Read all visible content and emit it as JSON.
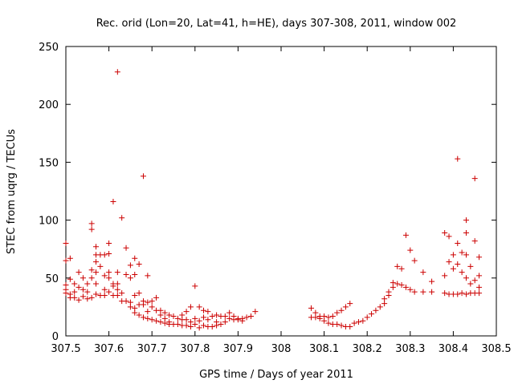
{
  "chart_data": {
    "type": "scatter",
    "title": "Rec. orid (Lon=20, Lat=41, h=HE), days 307-308, 2011, window 002",
    "xlabel": "GPS time / Days of year 2011",
    "ylabel": "STEC from uqrg / TECUs",
    "xlim": [
      307.5,
      308.5
    ],
    "ylim": [
      0,
      250
    ],
    "xticks": [
      307.5,
      307.6,
      307.7,
      307.8,
      307.9,
      308.0,
      308.1,
      308.2,
      308.3,
      308.4,
      308.5
    ],
    "xtick_labels": [
      "307.5",
      "307.6",
      "307.7",
      "307.8",
      "307.9",
      "308",
      "308.1",
      "308.2",
      "308.3",
      "308.4",
      "308.5"
    ],
    "yticks": [
      0,
      50,
      100,
      150,
      200,
      250
    ],
    "ytick_labels": [
      "0",
      "50",
      "100",
      "150",
      "200",
      "250"
    ],
    "grid": false,
    "marker": "+",
    "color": "#cc0000",
    "series": [
      {
        "name": "STEC",
        "points": [
          [
            307.5,
            80
          ],
          [
            307.5,
            65
          ],
          [
            307.5,
            44
          ],
          [
            307.5,
            40
          ],
          [
            307.5,
            37
          ],
          [
            307.51,
            67
          ],
          [
            307.51,
            49
          ],
          [
            307.51,
            36
          ],
          [
            307.51,
            33
          ],
          [
            307.52,
            45
          ],
          [
            307.52,
            38
          ],
          [
            307.52,
            33
          ],
          [
            307.53,
            55
          ],
          [
            307.53,
            42
          ],
          [
            307.53,
            31
          ],
          [
            307.54,
            50
          ],
          [
            307.54,
            40
          ],
          [
            307.54,
            34
          ],
          [
            307.55,
            45
          ],
          [
            307.55,
            38
          ],
          [
            307.55,
            32
          ],
          [
            307.56,
            97
          ],
          [
            307.56,
            92
          ],
          [
            307.56,
            57
          ],
          [
            307.56,
            50
          ],
          [
            307.56,
            33
          ],
          [
            307.57,
            77
          ],
          [
            307.57,
            70
          ],
          [
            307.57,
            64
          ],
          [
            307.57,
            55
          ],
          [
            307.57,
            45
          ],
          [
            307.57,
            36
          ],
          [
            307.58,
            70
          ],
          [
            307.58,
            60
          ],
          [
            307.58,
            35
          ],
          [
            307.59,
            70
          ],
          [
            307.59,
            52
          ],
          [
            307.59,
            40
          ],
          [
            307.59,
            35
          ],
          [
            307.6,
            80
          ],
          [
            307.6,
            71
          ],
          [
            307.6,
            55
          ],
          [
            307.6,
            50
          ],
          [
            307.6,
            38
          ],
          [
            307.61,
            116
          ],
          [
            307.61,
            45
          ],
          [
            307.61,
            43
          ],
          [
            307.61,
            35
          ],
          [
            307.62,
            228
          ],
          [
            307.62,
            55
          ],
          [
            307.62,
            45
          ],
          [
            307.62,
            40
          ],
          [
            307.62,
            35
          ],
          [
            307.63,
            102
          ],
          [
            307.63,
            37
          ],
          [
            307.63,
            30
          ],
          [
            307.64,
            76
          ],
          [
            307.64,
            53
          ],
          [
            307.64,
            30
          ],
          [
            307.65,
            61
          ],
          [
            307.65,
            50
          ],
          [
            307.65,
            29
          ],
          [
            307.65,
            25
          ],
          [
            307.66,
            67
          ],
          [
            307.66,
            53
          ],
          [
            307.66,
            35
          ],
          [
            307.66,
            24
          ],
          [
            307.66,
            20
          ],
          [
            307.67,
            62
          ],
          [
            307.67,
            37
          ],
          [
            307.67,
            27
          ],
          [
            307.67,
            18
          ],
          [
            307.68,
            138
          ],
          [
            307.68,
            30
          ],
          [
            307.68,
            27
          ],
          [
            307.68,
            16
          ],
          [
            307.69,
            52
          ],
          [
            307.69,
            29
          ],
          [
            307.69,
            21
          ],
          [
            307.69,
            15
          ],
          [
            307.7,
            30
          ],
          [
            307.7,
            25
          ],
          [
            307.7,
            14
          ],
          [
            307.71,
            33
          ],
          [
            307.71,
            22
          ],
          [
            307.71,
            13
          ],
          [
            307.72,
            22
          ],
          [
            307.72,
            18
          ],
          [
            307.72,
            12
          ],
          [
            307.73,
            20
          ],
          [
            307.73,
            15
          ],
          [
            307.73,
            11
          ],
          [
            307.74,
            18
          ],
          [
            307.74,
            12
          ],
          [
            307.74,
            10
          ],
          [
            307.75,
            17
          ],
          [
            307.75,
            10
          ],
          [
            307.76,
            15
          ],
          [
            307.76,
            10
          ],
          [
            307.77,
            18
          ],
          [
            307.77,
            14
          ],
          [
            307.77,
            9
          ],
          [
            307.78,
            21
          ],
          [
            307.78,
            14
          ],
          [
            307.78,
            9
          ],
          [
            307.79,
            25
          ],
          [
            307.79,
            12
          ],
          [
            307.79,
            8
          ],
          [
            307.8,
            43
          ],
          [
            307.8,
            15
          ],
          [
            307.8,
            10
          ],
          [
            307.81,
            25
          ],
          [
            307.81,
            13
          ],
          [
            307.81,
            7
          ],
          [
            307.82,
            22
          ],
          [
            307.82,
            16
          ],
          [
            307.82,
            9
          ],
          [
            307.83,
            21
          ],
          [
            307.83,
            14
          ],
          [
            307.83,
            8
          ],
          [
            307.84,
            17
          ],
          [
            307.84,
            8
          ],
          [
            307.85,
            18
          ],
          [
            307.85,
            12
          ],
          [
            307.85,
            9
          ],
          [
            307.86,
            17
          ],
          [
            307.86,
            10
          ],
          [
            307.87,
            17
          ],
          [
            307.87,
            12
          ],
          [
            307.88,
            20
          ],
          [
            307.88,
            15
          ],
          [
            307.89,
            17
          ],
          [
            307.89,
            14
          ],
          [
            307.9,
            15
          ],
          [
            307.9,
            14
          ],
          [
            307.91,
            15
          ],
          [
            307.91,
            13
          ],
          [
            307.92,
            16
          ],
          [
            307.93,
            17
          ],
          [
            307.94,
            21
          ],
          [
            308.07,
            24
          ],
          [
            308.07,
            16
          ],
          [
            308.08,
            20
          ],
          [
            308.08,
            16
          ],
          [
            308.09,
            17
          ],
          [
            308.09,
            15
          ],
          [
            308.1,
            17
          ],
          [
            308.1,
            13
          ],
          [
            308.11,
            16
          ],
          [
            308.11,
            11
          ],
          [
            308.12,
            17
          ],
          [
            308.12,
            10
          ],
          [
            308.13,
            20
          ],
          [
            308.13,
            10
          ],
          [
            308.14,
            22
          ],
          [
            308.14,
            9
          ],
          [
            308.15,
            25
          ],
          [
            308.15,
            8
          ],
          [
            308.16,
            28
          ],
          [
            308.16,
            8
          ],
          [
            308.17,
            11
          ],
          [
            308.18,
            12
          ],
          [
            308.19,
            13
          ],
          [
            308.2,
            16
          ],
          [
            308.21,
            19
          ],
          [
            308.22,
            22
          ],
          [
            308.23,
            25
          ],
          [
            308.24,
            28
          ],
          [
            308.24,
            32
          ],
          [
            308.25,
            35
          ],
          [
            308.25,
            38
          ],
          [
            308.26,
            42
          ],
          [
            308.26,
            46
          ],
          [
            308.27,
            60
          ],
          [
            308.27,
            45
          ],
          [
            308.28,
            58
          ],
          [
            308.28,
            44
          ],
          [
            308.29,
            87
          ],
          [
            308.29,
            42
          ],
          [
            308.3,
            74
          ],
          [
            308.3,
            40
          ],
          [
            308.31,
            65
          ],
          [
            308.31,
            38
          ],
          [
            308.33,
            55
          ],
          [
            308.33,
            38
          ],
          [
            308.35,
            47
          ],
          [
            308.35,
            38
          ],
          [
            308.38,
            89
          ],
          [
            308.38,
            52
          ],
          [
            308.38,
            37
          ],
          [
            308.39,
            86
          ],
          [
            308.39,
            64
          ],
          [
            308.39,
            36
          ],
          [
            308.4,
            70
          ],
          [
            308.4,
            58
          ],
          [
            308.4,
            36
          ],
          [
            308.41,
            153
          ],
          [
            308.41,
            80
          ],
          [
            308.41,
            62
          ],
          [
            308.41,
            36
          ],
          [
            308.42,
            72
          ],
          [
            308.42,
            55
          ],
          [
            308.42,
            37
          ],
          [
            308.43,
            100
          ],
          [
            308.43,
            89
          ],
          [
            308.43,
            70
          ],
          [
            308.43,
            50
          ],
          [
            308.43,
            36
          ],
          [
            308.44,
            60
          ],
          [
            308.44,
            45
          ],
          [
            308.44,
            37
          ],
          [
            308.45,
            136
          ],
          [
            308.45,
            82
          ],
          [
            308.45,
            48
          ],
          [
            308.45,
            37
          ],
          [
            308.46,
            68
          ],
          [
            308.46,
            52
          ],
          [
            308.46,
            42
          ],
          [
            308.46,
            37
          ]
        ]
      }
    ]
  }
}
